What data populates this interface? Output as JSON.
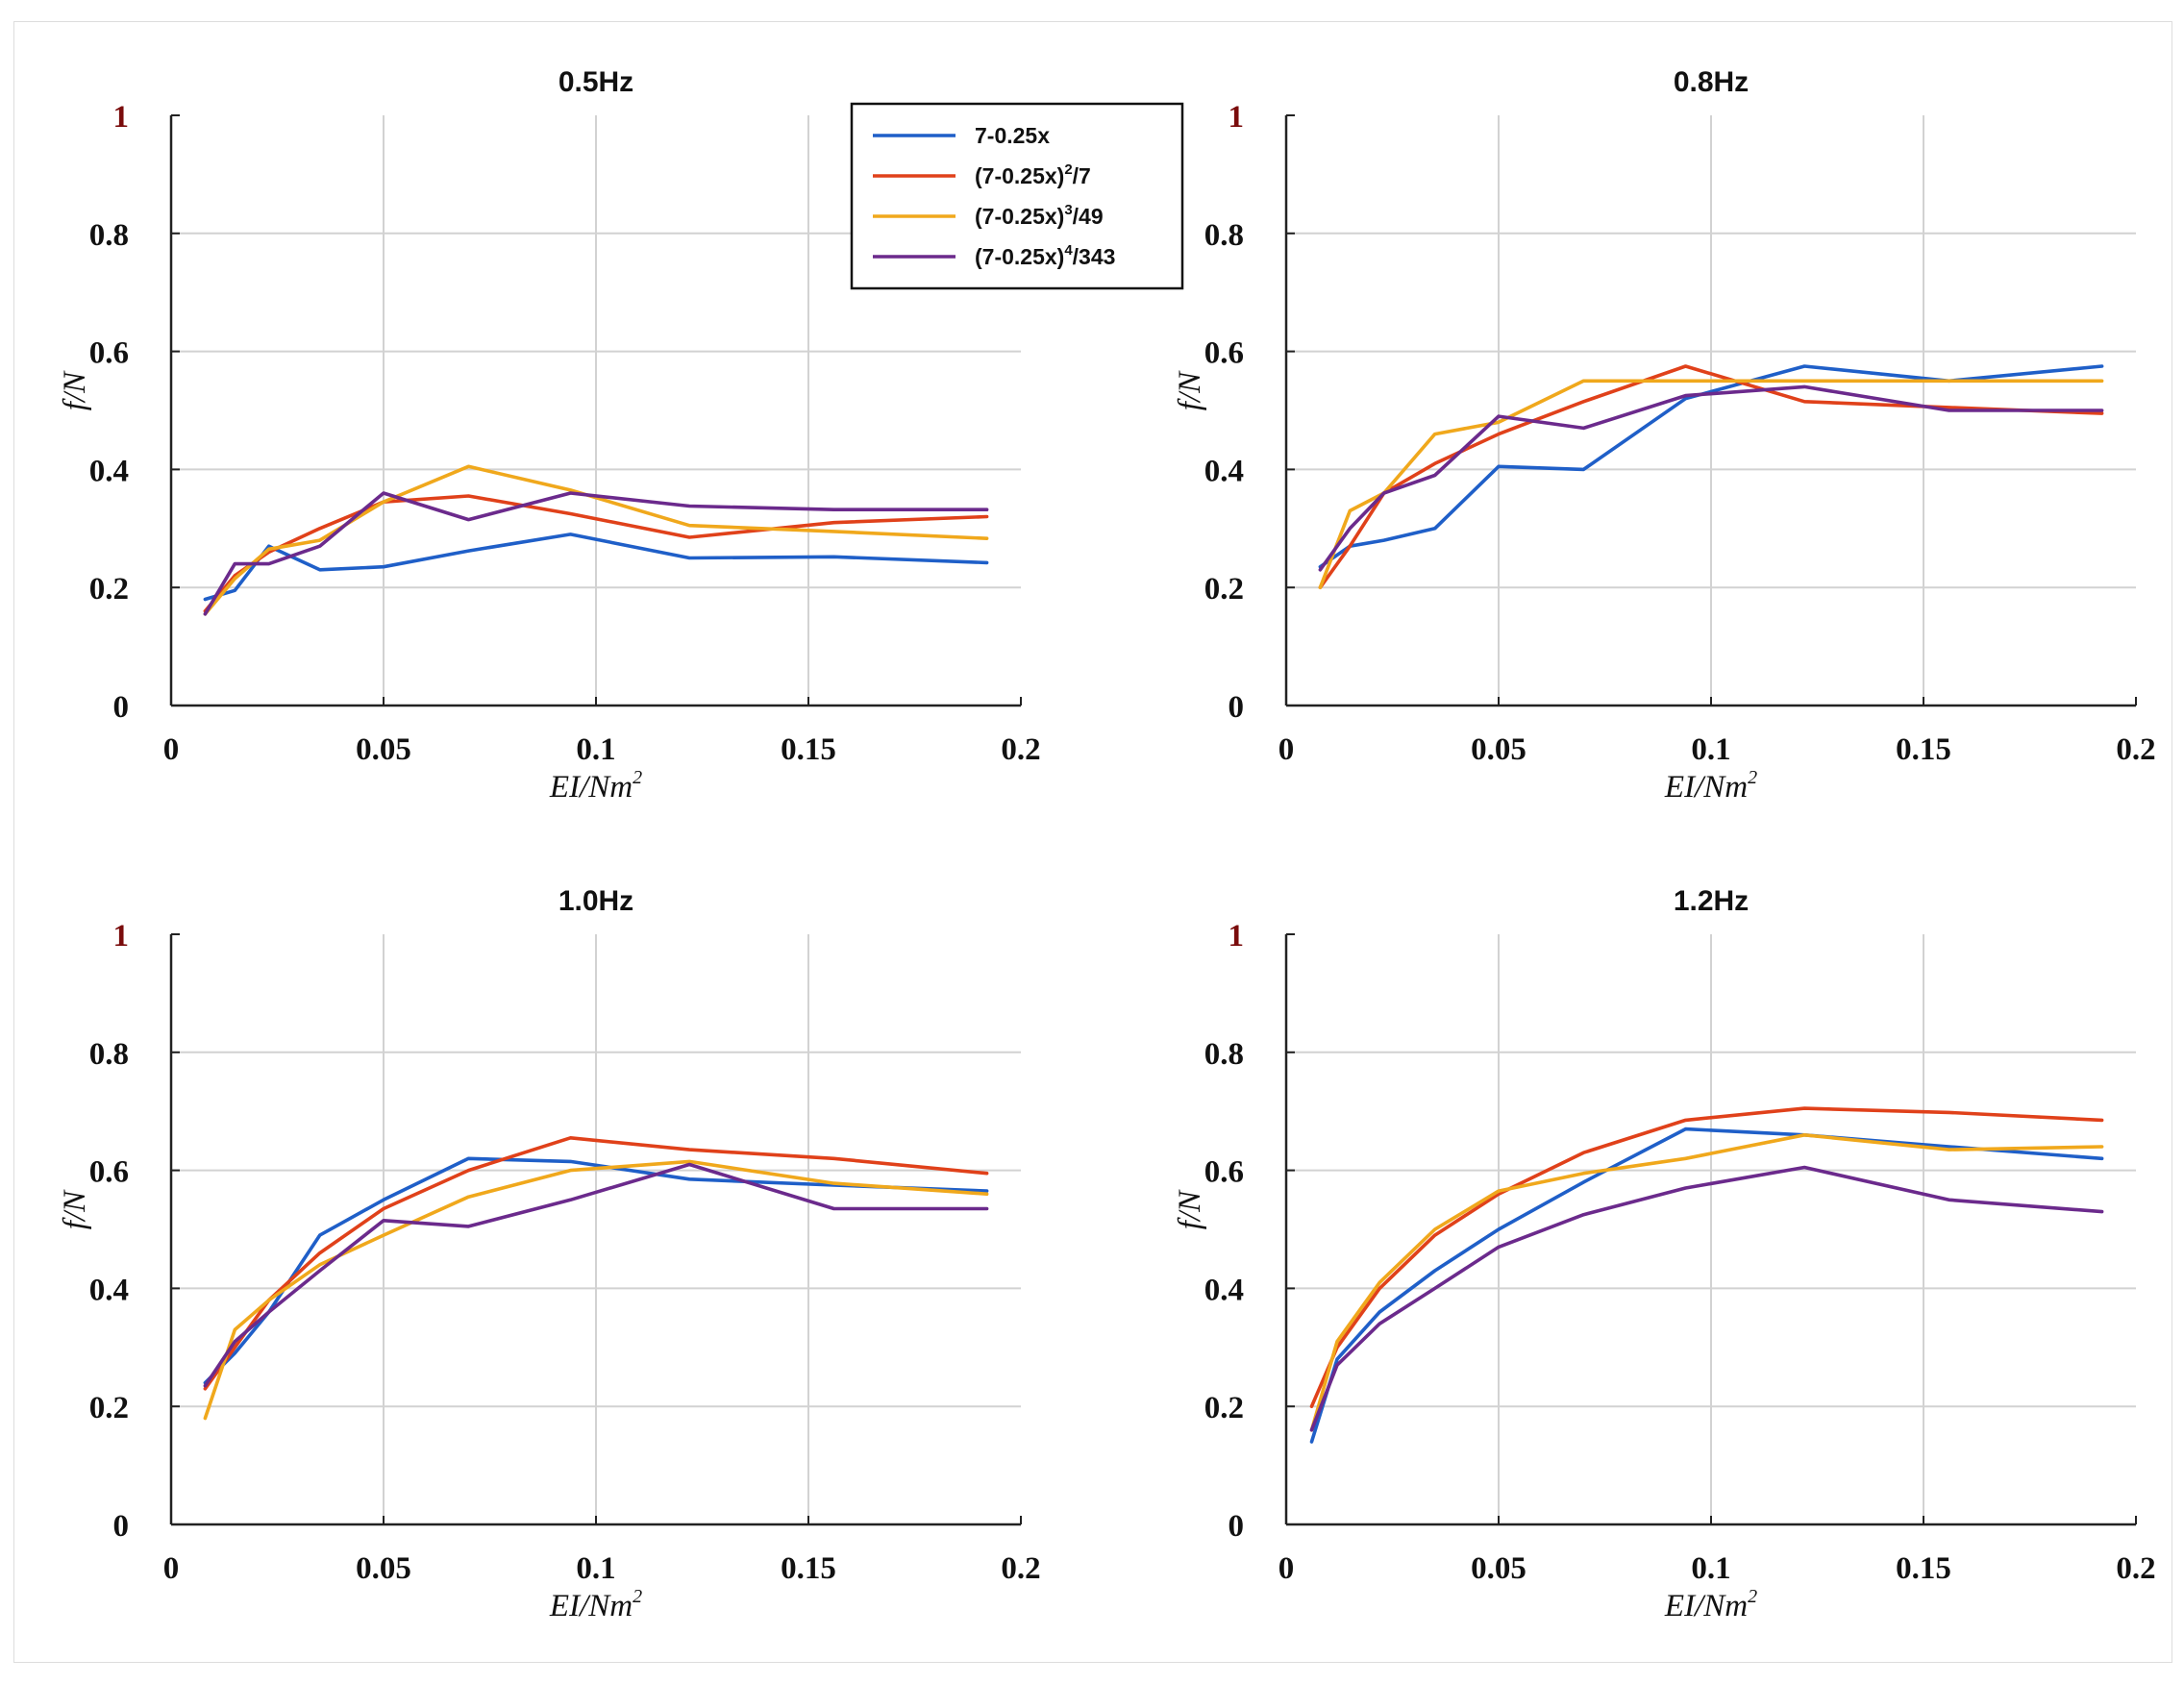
{
  "chart_data": [
    {
      "type": "line",
      "title": "0.5Hz",
      "xlabel": "EI/Nm",
      "xlabel_sup": "2",
      "ylabel": "f/N",
      "xlim": [
        0,
        0.2
      ],
      "ylim": [
        0,
        1
      ],
      "xticks": [
        "0",
        "0.05",
        "0.1",
        "0.15",
        "0.2"
      ],
      "yticks": [
        "0",
        "0.2",
        "0.4",
        "0.6",
        "0.8",
        "1"
      ],
      "grid": true,
      "series": [
        {
          "name": "7-0.25x",
          "x": [
            0.008,
            0.015,
            0.023,
            0.035,
            0.05,
            0.07,
            0.094,
            0.122,
            0.156,
            0.192
          ],
          "y": [
            0.18,
            0.195,
            0.27,
            0.23,
            0.235,
            0.262,
            0.29,
            0.25,
            0.252,
            0.242
          ]
        },
        {
          "name": "(7-0.25x)^2/7",
          "x": [
            0.008,
            0.015,
            0.023,
            0.035,
            0.05,
            0.07,
            0.094,
            0.122,
            0.156,
            0.192
          ],
          "y": [
            0.16,
            0.22,
            0.26,
            0.3,
            0.345,
            0.355,
            0.325,
            0.285,
            0.31,
            0.32
          ]
        },
        {
          "name": "(7-0.25x)^3/49",
          "x": [
            0.008,
            0.015,
            0.023,
            0.035,
            0.05,
            0.07,
            0.094,
            0.122,
            0.156,
            0.192
          ],
          "y": [
            0.155,
            0.215,
            0.265,
            0.28,
            0.345,
            0.405,
            0.365,
            0.305,
            0.295,
            0.283
          ]
        },
        {
          "name": "(7-0.25x)^4/343",
          "x": [
            0.008,
            0.015,
            0.023,
            0.035,
            0.05,
            0.07,
            0.094,
            0.122,
            0.156,
            0.192
          ],
          "y": [
            0.155,
            0.24,
            0.24,
            0.27,
            0.36,
            0.315,
            0.36,
            0.338,
            0.332,
            0.332
          ]
        }
      ]
    },
    {
      "type": "line",
      "title": "0.8Hz",
      "xlabel": "EI/Nm",
      "xlabel_sup": "2",
      "ylabel": "f/N",
      "xlim": [
        0,
        0.2
      ],
      "ylim": [
        0,
        1
      ],
      "xticks": [
        "0",
        "0.05",
        "0.1",
        "0.15",
        "0.2"
      ],
      "yticks": [
        "0",
        "0.2",
        "0.4",
        "0.6",
        "0.8",
        "1"
      ],
      "grid": true,
      "series": [
        {
          "name": "7-0.25x",
          "x": [
            0.008,
            0.015,
            0.023,
            0.035,
            0.05,
            0.07,
            0.094,
            0.122,
            0.156,
            0.192
          ],
          "y": [
            0.235,
            0.27,
            0.28,
            0.3,
            0.405,
            0.4,
            0.52,
            0.575,
            0.55,
            0.575
          ]
        },
        {
          "name": "(7-0.25x)^2/7",
          "x": [
            0.008,
            0.015,
            0.023,
            0.035,
            0.05,
            0.07,
            0.094,
            0.122,
            0.156,
            0.192
          ],
          "y": [
            0.2,
            0.27,
            0.36,
            0.41,
            0.46,
            0.515,
            0.575,
            0.515,
            0.505,
            0.495
          ]
        },
        {
          "name": "(7-0.25x)^3/49",
          "x": [
            0.008,
            0.015,
            0.023,
            0.035,
            0.05,
            0.07,
            0.094,
            0.122,
            0.156,
            0.192
          ],
          "y": [
            0.2,
            0.33,
            0.36,
            0.46,
            0.48,
            0.55,
            0.55,
            0.55,
            0.55,
            0.55
          ]
        },
        {
          "name": "(7-0.25x)^4/343",
          "x": [
            0.008,
            0.015,
            0.023,
            0.035,
            0.05,
            0.07,
            0.094,
            0.122,
            0.156,
            0.192
          ],
          "y": [
            0.23,
            0.3,
            0.36,
            0.39,
            0.49,
            0.47,
            0.525,
            0.54,
            0.5,
            0.5
          ]
        }
      ]
    },
    {
      "type": "line",
      "title": "1.0Hz",
      "xlabel": "EI/Nm",
      "xlabel_sup": "2",
      "ylabel": "f/N",
      "xlim": [
        0,
        0.2
      ],
      "ylim": [
        0,
        1
      ],
      "xticks": [
        "0",
        "0.05",
        "0.1",
        "0.15",
        "0.2"
      ],
      "yticks": [
        "0",
        "0.2",
        "0.4",
        "0.6",
        "0.8",
        "1"
      ],
      "grid": true,
      "series": [
        {
          "name": "7-0.25x",
          "x": [
            0.008,
            0.015,
            0.023,
            0.035,
            0.05,
            0.07,
            0.094,
            0.122,
            0.156,
            0.192
          ],
          "y": [
            0.24,
            0.29,
            0.36,
            0.49,
            0.55,
            0.62,
            0.615,
            0.585,
            0.575,
            0.565
          ]
        },
        {
          "name": "(7-0.25x)^2/7",
          "x": [
            0.008,
            0.015,
            0.023,
            0.035,
            0.05,
            0.07,
            0.094,
            0.122,
            0.156,
            0.192
          ],
          "y": [
            0.23,
            0.3,
            0.38,
            0.46,
            0.535,
            0.6,
            0.655,
            0.635,
            0.62,
            0.595
          ]
        },
        {
          "name": "(7-0.25x)^3/49",
          "x": [
            0.008,
            0.015,
            0.023,
            0.035,
            0.05,
            0.07,
            0.094,
            0.122,
            0.156,
            0.192
          ],
          "y": [
            0.18,
            0.33,
            0.38,
            0.44,
            0.49,
            0.555,
            0.6,
            0.615,
            0.578,
            0.56
          ]
        },
        {
          "name": "(7-0.25x)^4/343",
          "x": [
            0.008,
            0.015,
            0.023,
            0.035,
            0.05,
            0.07,
            0.094,
            0.122,
            0.156,
            0.192
          ],
          "y": [
            0.235,
            0.31,
            0.36,
            0.43,
            0.515,
            0.505,
            0.55,
            0.61,
            0.535,
            0.535
          ]
        }
      ]
    },
    {
      "type": "line",
      "title": "1.2Hz",
      "xlabel": "EI/Nm",
      "xlabel_sup": "2",
      "ylabel": "f/N",
      "xlim": [
        0,
        0.2
      ],
      "ylim": [
        0,
        1
      ],
      "xticks": [
        "0",
        "0.05",
        "0.1",
        "0.15",
        "0.2"
      ],
      "yticks": [
        "0",
        "0.2",
        "0.4",
        "0.6",
        "0.8",
        "1"
      ],
      "grid": true,
      "series": [
        {
          "name": "7-0.25x",
          "x": [
            0.006,
            0.012,
            0.022,
            0.035,
            0.05,
            0.07,
            0.094,
            0.122,
            0.156,
            0.192
          ],
          "y": [
            0.14,
            0.28,
            0.36,
            0.43,
            0.5,
            0.58,
            0.67,
            0.66,
            0.64,
            0.62
          ]
        },
        {
          "name": "(7-0.25x)^2/7",
          "x": [
            0.006,
            0.012,
            0.022,
            0.035,
            0.05,
            0.07,
            0.094,
            0.122,
            0.156,
            0.192
          ],
          "y": [
            0.2,
            0.3,
            0.4,
            0.49,
            0.56,
            0.63,
            0.685,
            0.705,
            0.698,
            0.685
          ]
        },
        {
          "name": "(7-0.25x)^3/49",
          "x": [
            0.006,
            0.012,
            0.022,
            0.035,
            0.05,
            0.07,
            0.094,
            0.122,
            0.156,
            0.192
          ],
          "y": [
            0.16,
            0.31,
            0.41,
            0.5,
            0.565,
            0.595,
            0.62,
            0.66,
            0.635,
            0.64
          ]
        },
        {
          "name": "(7-0.25x)^4/343",
          "x": [
            0.006,
            0.012,
            0.022,
            0.035,
            0.05,
            0.07,
            0.094,
            0.122,
            0.156,
            0.192
          ],
          "y": [
            0.16,
            0.27,
            0.34,
            0.4,
            0.47,
            0.525,
            0.57,
            0.605,
            0.55,
            0.53
          ]
        }
      ]
    }
  ],
  "legend": {
    "location": "top-right of first panel",
    "entries": [
      {
        "base": "7-0.25x",
        "sup": "",
        "tail": "",
        "color": "#1f5fc8"
      },
      {
        "base": "(7-0.25x)",
        "sup": "2",
        "tail": "/7",
        "color": "#e0411a"
      },
      {
        "base": "(7-0.25x)",
        "sup": "3",
        "tail": "/49",
        "color": "#f0a81c"
      },
      {
        "base": "(7-0.25x)",
        "sup": "4",
        "tail": "/343",
        "color": "#6b2a8c"
      }
    ]
  },
  "colors": {
    "series": [
      "#1f5fc8",
      "#e0411a",
      "#f0a81c",
      "#6b2a8c"
    ],
    "grid": "#d2d2d2",
    "axis": "#222222"
  }
}
